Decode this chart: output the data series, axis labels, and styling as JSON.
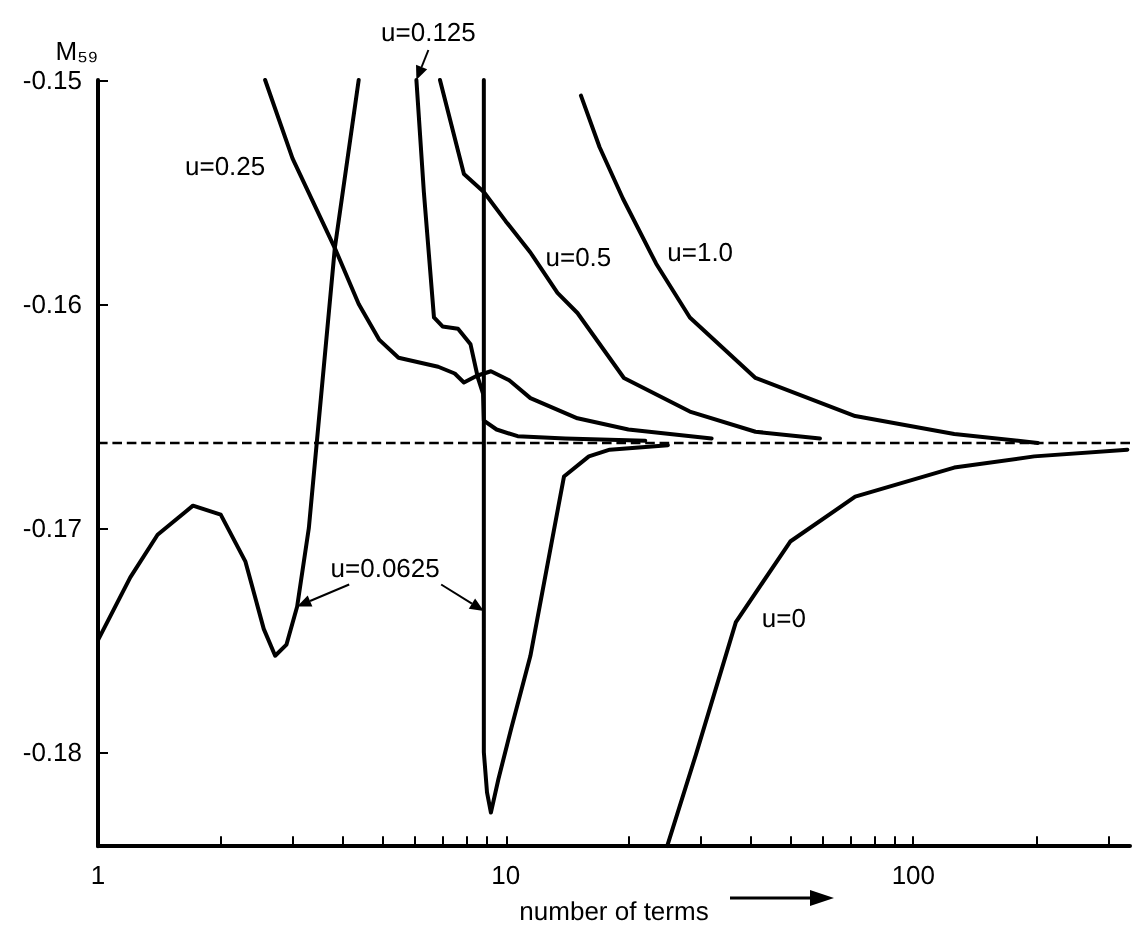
{
  "chart_data": {
    "type": "line",
    "xlabel": "number of terms",
    "ylabel": "M₅₉",
    "log": "x",
    "xlim": [
      1,
      340
    ],
    "xticks": [
      1,
      {
        "value": 2,
        "label": null
      },
      {
        "value": 3,
        "label": null
      },
      {
        "value": 4,
        "label": null
      },
      {
        "value": 5,
        "label": null
      },
      {
        "value": 6,
        "label": null
      },
      {
        "value": 7,
        "label": null
      },
      {
        "value": 8,
        "label": null
      },
      {
        "value": 9,
        "label": null
      },
      10,
      {
        "value": 20,
        "label": null
      },
      {
        "value": 30,
        "label": null
      },
      {
        "value": 40,
        "label": null
      },
      {
        "value": 50,
        "label": null
      },
      {
        "value": 60,
        "label": null
      },
      {
        "value": 70,
        "label": null
      },
      {
        "value": 80,
        "label": null
      },
      {
        "value": 90,
        "label": null
      },
      100,
      {
        "value": 200,
        "label": null
      },
      {
        "value": 300,
        "label": null
      }
    ],
    "ylim": [
      -0.1842,
      -0.15
    ],
    "yticks": [
      -0.18,
      -0.17,
      -0.16,
      -0.15
    ],
    "ref_lines": [
      {
        "axis": "y",
        "value": -0.1662,
        "color": "#000000",
        "line_style": "dashed"
      }
    ],
    "series": [
      {
        "name": "u=0.0625",
        "color": "#000000",
        "x": [
          1,
          1.2,
          1.4,
          1.71,
          2.0,
          2.3,
          2.55,
          2.72,
          2.9,
          3.08,
          3.29,
          3.81,
          4.36,
          6.5,
          8.84,
          8.84,
          8.84,
          9.0,
          9.2,
          9.6,
          10.3,
          11.5,
          13.9,
          16,
          18,
          25
        ],
        "values": [
          -0.175,
          -0.1722,
          -0.1703,
          -0.169,
          -0.1694,
          -0.1715,
          -0.1745,
          -0.1757,
          -0.1752,
          -0.1735,
          -0.17,
          -0.1575,
          -0.15,
          null,
          -0.15,
          -0.1737,
          -0.18,
          -0.1818,
          -0.1827,
          -0.1812,
          -0.179,
          -0.1757,
          -0.1677,
          -0.1668,
          -0.1665,
          -0.1663
        ]
      },
      {
        "name": "u=0.125",
        "color": "#000000",
        "x": [
          6.04,
          6.3,
          6.67,
          7.0,
          7.64,
          8.2,
          8.55,
          8.8,
          8.84,
          9.5,
          10.7,
          14,
          22
        ],
        "values": [
          -0.15,
          -0.155,
          -0.1606,
          -0.161,
          -0.1611,
          -0.1618,
          -0.1633,
          -0.164,
          -0.1652,
          -0.1656,
          -0.1659,
          -0.166,
          -0.1661
        ]
      },
      {
        "name": "u=0.25",
        "color": "#000000",
        "x": [
          2.57,
          3.0,
          3.81,
          4.36,
          4.9,
          5.46,
          6.83,
          7.5,
          7.9,
          8.5,
          9.2,
          10.2,
          11.5,
          15,
          20,
          32
        ],
        "values": [
          -0.15,
          -0.1535,
          -0.1575,
          -0.16,
          -0.1616,
          -0.1624,
          -0.1628,
          -0.1631,
          -0.1635,
          -0.1632,
          -0.163,
          -0.1634,
          -0.1642,
          -0.1651,
          -0.1656,
          -0.166
        ]
      },
      {
        "name": "u=0.5",
        "color": "#000000",
        "x": [
          6.9,
          7.9,
          8.84,
          10,
          11.5,
          13.4,
          15,
          19.5,
          28.3,
          41,
          59
        ],
        "values": [
          -0.15,
          -0.1542,
          -0.155,
          -0.1563,
          -0.1577,
          -0.1595,
          -0.1604,
          -0.1633,
          -0.1648,
          -0.1657,
          -0.166
        ]
      },
      {
        "name": "u=1.0",
        "color": "#000000",
        "x": [
          15.3,
          17,
          19.4,
          23.4,
          28.3,
          41,
          72,
          126,
          202
        ],
        "values": [
          -0.1507,
          -0.153,
          -0.1553,
          -0.1582,
          -0.1606,
          -0.1633,
          -0.165,
          -0.1658,
          -0.1662
        ]
      },
      {
        "name": "u=0",
        "color": "#000000",
        "x": [
          24.9,
          29.3,
          36.7,
          49.9,
          72,
          126,
          198,
          335
        ],
        "values": [
          -0.1842,
          -0.1801,
          -0.1742,
          -0.1706,
          -0.1686,
          -0.1673,
          -0.1668,
          -0.1665
        ]
      }
    ]
  }
}
